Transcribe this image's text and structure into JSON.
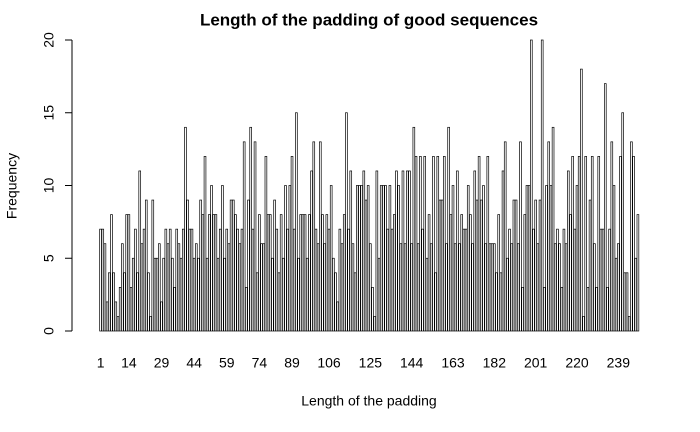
{
  "chart_data": {
    "type": "bar",
    "title": "Length of the padding of good sequences",
    "xlabel": "Length of the padding",
    "ylabel": "Frequency",
    "color": "#ffffff",
    "categories": [
      "1",
      null,
      null,
      null,
      null,
      null,
      null,
      null,
      null,
      null,
      null,
      null,
      null,
      "14",
      null,
      null,
      null,
      null,
      null,
      null,
      null,
      null,
      null,
      null,
      null,
      null,
      null,
      null,
      "29",
      null,
      null,
      null,
      null,
      null,
      null,
      null,
      null,
      null,
      null,
      null,
      null,
      null,
      null,
      "44",
      null,
      null,
      null,
      null,
      null,
      null,
      null,
      null,
      null,
      null,
      null,
      null,
      null,
      null,
      "59",
      null,
      null,
      null,
      null,
      null,
      null,
      null,
      null,
      null,
      null,
      null,
      null,
      null,
      null,
      "74",
      null,
      null,
      null,
      null,
      null,
      null,
      null,
      null,
      null,
      null,
      null,
      null,
      null,
      null,
      "89",
      null,
      null,
      null,
      null,
      null,
      null,
      null,
      null,
      null,
      null,
      null,
      null,
      null,
      null,
      null,
      null,
      "106",
      null,
      null,
      null,
      null,
      null,
      null,
      null,
      null,
      null,
      null,
      null,
      null,
      null,
      null,
      null,
      null,
      null,
      null,
      "125",
      null,
      null,
      null,
      null,
      null,
      null,
      null,
      null,
      null,
      null,
      null,
      null,
      null,
      null,
      null,
      null,
      null,
      null,
      "144",
      null,
      null,
      null,
      null,
      null,
      null,
      null,
      null,
      null,
      null,
      null,
      null,
      null,
      null,
      null,
      null,
      null,
      null,
      "163",
      null,
      null,
      null,
      null,
      null,
      null,
      null,
      null,
      null,
      null,
      null,
      null,
      null,
      null,
      null,
      null,
      null,
      null,
      "182",
      null,
      null,
      null,
      null,
      null,
      null,
      null,
      null,
      null,
      null,
      null,
      null,
      null,
      null,
      null,
      null,
      null,
      null,
      "201",
      null,
      null,
      null,
      null,
      null,
      null,
      null,
      null,
      null,
      null,
      null,
      null,
      null,
      null,
      null,
      null,
      null,
      null,
      "220",
      null,
      null,
      null,
      null,
      null,
      null,
      null,
      null,
      null,
      null,
      null,
      null,
      null,
      null,
      null,
      null,
      null,
      null,
      "239",
      null,
      null,
      null,
      null,
      null,
      null,
      null,
      null,
      null
    ],
    "values": [
      7,
      7,
      6,
      2,
      4,
      8,
      4,
      2,
      1,
      3,
      6,
      4,
      8,
      8,
      3,
      5,
      7,
      4,
      11,
      6,
      7,
      9,
      4,
      1,
      9,
      5,
      5,
      6,
      2,
      5,
      7,
      6,
      7,
      5,
      3,
      7,
      6,
      5,
      7,
      14,
      9,
      7,
      7,
      5,
      6,
      5,
      9,
      8,
      12,
      5,
      8,
      10,
      8,
      8,
      5,
      7,
      10,
      5,
      7,
      6,
      9,
      9,
      8,
      7,
      6,
      7,
      13,
      3,
      9,
      14,
      7,
      13,
      4,
      8,
      6,
      6,
      12,
      8,
      8,
      5,
      9,
      7,
      4,
      8,
      5,
      10,
      7,
      10,
      12,
      7,
      15,
      5,
      8,
      8,
      8,
      5,
      8,
      11,
      13,
      7,
      6,
      13,
      8,
      6,
      8,
      7,
      10,
      5,
      4,
      2,
      7,
      6,
      8,
      15,
      7,
      11,
      6,
      4,
      10,
      10,
      10,
      11,
      9,
      10,
      6,
      3,
      1,
      11,
      5,
      10,
      10,
      10,
      7,
      10,
      7,
      8,
      11,
      10,
      6,
      11,
      6,
      11,
      11,
      6,
      14,
      12,
      6,
      12,
      7,
      12,
      5,
      8,
      6,
      12,
      4,
      12,
      9,
      9,
      12,
      6,
      14,
      8,
      10,
      6,
      11,
      6,
      8,
      7,
      7,
      10,
      8,
      6,
      11,
      9,
      12,
      9,
      10,
      6,
      12,
      6,
      6,
      6,
      4,
      8,
      4,
      11,
      13,
      5,
      7,
      6,
      9,
      9,
      6,
      13,
      3,
      8,
      10,
      10,
      20,
      7,
      9,
      6,
      9,
      20,
      3,
      10,
      13,
      10,
      14,
      6,
      7,
      6,
      3,
      7,
      6,
      11,
      8,
      12,
      7,
      10,
      12,
      18,
      1,
      12,
      3,
      9,
      12,
      6,
      3,
      12,
      7,
      7,
      17,
      3,
      7,
      13,
      10,
      5,
      6,
      12,
      15,
      4,
      4,
      1,
      13,
      12,
      5,
      8
    ],
    "ylim": [
      0,
      20
    ],
    "yticks": [
      0,
      5,
      10,
      15,
      20
    ]
  }
}
